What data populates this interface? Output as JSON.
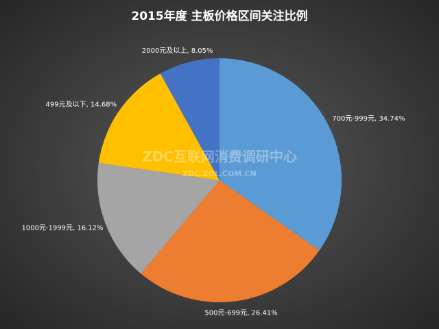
{
  "chart_data": {
    "type": "pie",
    "title": "2015年度 主板价格区间关注比例",
    "categories": [
      "700元-999元",
      "500元-699元",
      "1000元-1999元",
      "499元及以下",
      "2000元及以上"
    ],
    "values": [
      34.74,
      26.41,
      16.12,
      14.68,
      8.05
    ],
    "value_labels": [
      "34.74%",
      "26.41%",
      "16.12%",
      "14.68%",
      "8.05%"
    ],
    "label_separator": ", ",
    "colors": [
      "#5b9bd5",
      "#ed7d31",
      "#a5a5a5",
      "#ffc000",
      "#4472c4"
    ],
    "watermark": "ZDC互联网消费调研中心",
    "watermark_url": "ZDC.ZOL.COM.CN"
  }
}
